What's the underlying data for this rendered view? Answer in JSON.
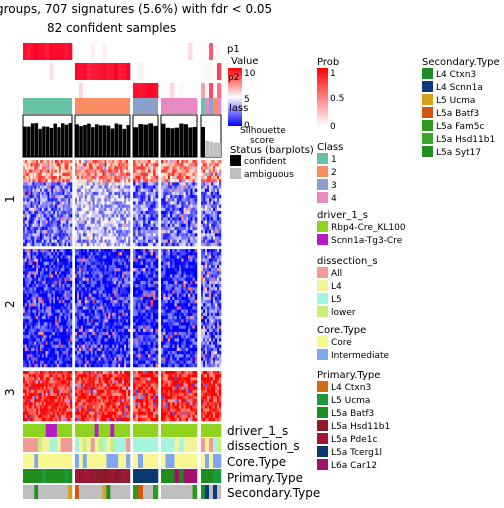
{
  "chart_data": {
    "type": "heatmap",
    "title": "groups, 707 signatures (5.6%) with fdr < 0.05",
    "subtitle": "82 confident samples",
    "column_groups": [
      {
        "class": "1",
        "n_cols": 13
      },
      {
        "class": "2",
        "n_cols": 14
      },
      {
        "class": "3",
        "n_cols": 5
      },
      {
        "class": "4",
        "n_cols": 8
      },
      {
        "class": "mixed",
        "n_cols": 5
      }
    ],
    "row_groups": [
      {
        "label": "1",
        "fraction": 0.33
      },
      {
        "label": "2",
        "fraction": 0.41
      },
      {
        "label": "3",
        "fraction": 0.26
      }
    ],
    "top_annotation_labels": {
      "p1": "p1",
      "silhouette": "Silhouette\nscore"
    },
    "bottom_annotation_labels": [
      "driver_1_s",
      "dissection_s",
      "Core.Type",
      "Primary.Type",
      "Secondary.Type"
    ],
    "legends": {
      "value": {
        "title": "Value",
        "ticks": [
          "10",
          "5",
          "0"
        ],
        "overlap_text": [
          "p2",
          "lass"
        ]
      },
      "prob": {
        "title": "Prob",
        "ticks": [
          "1",
          "0.5",
          "0"
        ]
      },
      "status": {
        "title": "Status (barplots)",
        "items": [
          {
            "label": "confident",
            "color": "#000000"
          },
          {
            "label": "ambiguous",
            "color": "#BEBEBE"
          }
        ]
      },
      "class": {
        "title": "Class",
        "items": [
          {
            "label": "1",
            "color": "#66C2A5"
          },
          {
            "label": "2",
            "color": "#FC8D62"
          },
          {
            "label": "3",
            "color": "#8DA0CB"
          },
          {
            "label": "4",
            "color": "#E78AC3"
          }
        ]
      },
      "driver": {
        "title": "driver_1_s",
        "items": [
          {
            "label": "Rbp4-Cre_KL100",
            "color": "#8FD31F"
          },
          {
            "label": "Scnn1a-Tg3-Cre",
            "color": "#B51BC7"
          }
        ]
      },
      "dissection": {
        "title": "dissection_s",
        "items": [
          {
            "label": "All",
            "color": "#F19A96"
          },
          {
            "label": "L4",
            "color": "#F2F29A"
          },
          {
            "label": "L5",
            "color": "#A6F3DF"
          },
          {
            "label": "lower",
            "color": "#C4F07B"
          }
        ]
      },
      "core": {
        "title": "Core.Type",
        "items": [
          {
            "label": "Core",
            "color": "#F7F88F"
          },
          {
            "label": "Intermediate",
            "color": "#7FA6F0"
          }
        ]
      },
      "primary": {
        "title": "Primary.Type",
        "items": [
          {
            "label": "L4 Ctxn3",
            "color": "#D06B12"
          },
          {
            "label": "L5 Ucma",
            "color": "#1A9A3A"
          },
          {
            "label": "L5a Batf3",
            "color": "#1D8D1D"
          },
          {
            "label": "L5a Hsd11b1",
            "color": "#8E1B2C"
          },
          {
            "label": "L5a Pde1c",
            "color": "#A31536"
          },
          {
            "label": "L5a Tcerg1l",
            "color": "#0D3A6E"
          },
          {
            "label": "L6a Car12",
            "color": "#A1126C"
          }
        ]
      },
      "secondary": {
        "title": "Secondary.Type",
        "items": [
          {
            "label": "L4 Ctxn3",
            "color": "#1D8D2A"
          },
          {
            "label": "L4 Scnn1a",
            "color": "#0B3A80"
          },
          {
            "label": "L5 Ucma",
            "color": "#D7A018"
          },
          {
            "label": "L5a Batf3",
            "color": "#D2570E"
          },
          {
            "label": "L5a Fam5c",
            "color": "#2E9A1C"
          },
          {
            "label": "L5a Hsd11b1",
            "color": "#3AA82A"
          },
          {
            "label": "L5a Syt17",
            "color": "#22901F"
          }
        ]
      }
    },
    "colors": {
      "high": "#FF0000",
      "mid": "#FFFFFF",
      "low": "#0000FF",
      "ambiguous": "#BEBEBE"
    }
  }
}
